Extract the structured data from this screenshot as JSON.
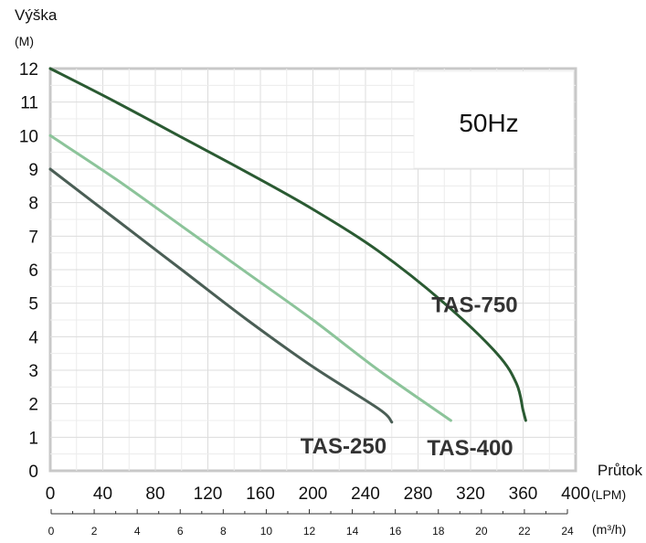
{
  "chart_data": {
    "type": "line",
    "frequency_label": "50Hz",
    "y_axis": {
      "title": "Výška",
      "unit": "(M)",
      "ticks": [
        "0",
        "1",
        "2",
        "3",
        "4",
        "5",
        "6",
        "7",
        "8",
        "9",
        "10",
        "11",
        "12"
      ],
      "ylim": [
        0,
        12
      ]
    },
    "x_axis_lpm": {
      "title": "Průtok",
      "unit": "(LPM)",
      "ticks": [
        "0",
        "40",
        "80",
        "120",
        "160",
        "200",
        "240",
        "280",
        "320",
        "360",
        "400"
      ],
      "xlim": [
        0,
        400
      ]
    },
    "x_axis_m3h": {
      "unit": "(m³/h)",
      "ticks": [
        "0",
        "2",
        "4",
        "6",
        "8",
        "10",
        "12",
        "14",
        "16",
        "18",
        "20",
        "22",
        "24"
      ],
      "xlim": [
        0,
        24
      ]
    },
    "grid": true,
    "series": [
      {
        "name": "TAS-250",
        "color": "#4a5e55",
        "points": [
          [
            0,
            9.0
          ],
          [
            50,
            7.5
          ],
          [
            100,
            6.0
          ],
          [
            150,
            4.5
          ],
          [
            200,
            3.1
          ],
          [
            250,
            1.85
          ],
          [
            260,
            1.45
          ]
        ]
      },
      {
        "name": "TAS-400",
        "color": "#8cc49a",
        "points": [
          [
            0,
            10.0
          ],
          [
            50,
            8.7
          ],
          [
            100,
            7.3
          ],
          [
            150,
            5.9
          ],
          [
            200,
            4.5
          ],
          [
            250,
            3.0
          ],
          [
            305,
            1.5
          ]
        ]
      },
      {
        "name": "TAS-750",
        "color": "#2a5a32",
        "points": [
          [
            0,
            12.0
          ],
          [
            50,
            11.0
          ],
          [
            100,
            9.95
          ],
          [
            150,
            8.9
          ],
          [
            200,
            7.8
          ],
          [
            250,
            6.55
          ],
          [
            300,
            5.0
          ],
          [
            340,
            3.5
          ],
          [
            355,
            2.6
          ],
          [
            360,
            1.8
          ],
          [
            362,
            1.5
          ]
        ]
      }
    ]
  }
}
